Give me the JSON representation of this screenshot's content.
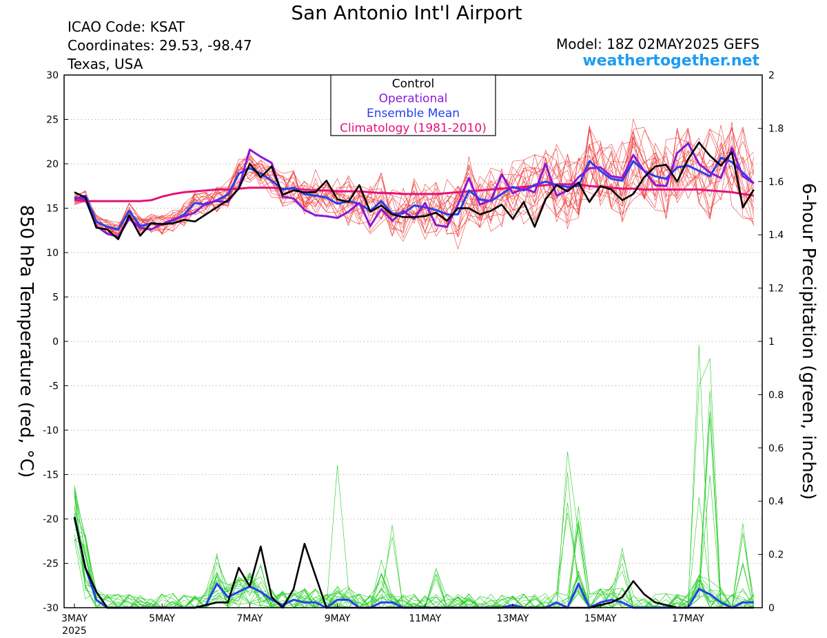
{
  "header": {
    "title": "San Antonio Int'l Airport",
    "icao": "ICAO Code: KSAT",
    "coordinates": "Coordinates: 29.53, -98.47",
    "state": "Texas, USA",
    "model": "Model: 18Z 02MAY2025 GEFS",
    "site": "weathertogether.net"
  },
  "colors": {
    "member_temp": "#ee3c3c",
    "member_precip": "#22cc22",
    "control": "#000000",
    "operational": "#8c18d4",
    "ensemble_mean": "#2440f0",
    "climatology": "#e81078",
    "site": "#1e9cf0"
  },
  "chart_data": {
    "type": "line",
    "ylabel": "850 hPa Temperature (red, °C)",
    "y2label": "6-hour Precipitation (green, inches)",
    "ylim": [
      -30,
      30
    ],
    "y2lim": [
      0,
      2
    ],
    "yticks": [
      30,
      25,
      20,
      15,
      10,
      5,
      0,
      -5,
      -10,
      -15,
      -20,
      -25,
      -30
    ],
    "y2ticks": [
      2,
      1.8,
      1.6,
      1.4,
      1.2,
      1,
      0.8,
      0.6,
      0.4,
      0.2,
      0
    ],
    "x_start": "3MAY",
    "x_step_hours": 6,
    "xlim": [
      0,
      62.5
    ],
    "xticks": [
      {
        "x": 0,
        "label": "3MAY",
        "sub": "2025"
      },
      {
        "x": 8,
        "label": "5MAY"
      },
      {
        "x": 16,
        "label": "7MAY"
      },
      {
        "x": 24,
        "label": "9MAY"
      },
      {
        "x": 32,
        "label": "11MAY"
      },
      {
        "x": 40,
        "label": "13MAY"
      },
      {
        "x": 48,
        "label": "15MAY"
      },
      {
        "x": 56,
        "label": "17MAY"
      }
    ],
    "grid": true,
    "legend": {
      "position": "top-center",
      "entries": [
        {
          "name": "Control",
          "color": "#000000"
        },
        {
          "name": "Operational",
          "color": "#8c18d4"
        },
        {
          "name": "Ensemble Mean",
          "color": "#2440f0"
        },
        {
          "name": "Climatology (1981-2010)",
          "color": "#e81078"
        }
      ]
    },
    "temperature": {
      "control": [
        16.8,
        16.2,
        12.8,
        12.6,
        11.5,
        14.2,
        11.9,
        13.3,
        13.2,
        13.3,
        13.7,
        13.5,
        14.3,
        15.1,
        15.9,
        17.2,
        20.0,
        18.5,
        19.7,
        16.5,
        17.0,
        16.8,
        16.8,
        18.1,
        16.0,
        15.7,
        17.6,
        14.6,
        15.3,
        14.3,
        14.0,
        14.0,
        14.1,
        14.5,
        13.6,
        15.0,
        15.0,
        14.3,
        14.7,
        15.4,
        13.8,
        15.7,
        12.9,
        16.0,
        17.6,
        16.9,
        17.9,
        15.7,
        17.5,
        17.1,
        15.9,
        16.6,
        18.5,
        19.7,
        19.9,
        18.0,
        20.5,
        22.4,
        20.9,
        19.8,
        21.3,
        15.1,
        17.1
      ],
      "operational": [
        16.2,
        16.0,
        13.0,
        12.1,
        11.8,
        13.8,
        12.8,
        12.6,
        13.2,
        13.7,
        14.1,
        14.5,
        15.6,
        15.8,
        15.7,
        17.3,
        21.6,
        20.8,
        20.1,
        16.3,
        16.1,
        14.8,
        14.2,
        14.1,
        13.9,
        14.6,
        15.6,
        13.0,
        14.9,
        13.6,
        14.7,
        13.8,
        15.6,
        13.1,
        12.9,
        15.4,
        18.4,
        15.4,
        15.9,
        18.8,
        16.7,
        17.2,
        16.8,
        20.0,
        16.4,
        17.0,
        18.5,
        19.5,
        19.6,
        18.6,
        18.4,
        21.0,
        19.2,
        17.6,
        17.5,
        21.2,
        22.3,
        20.0,
        19.0,
        18.4,
        21.8,
        18.6,
        17.8
      ],
      "ensemble_mean": [
        16.0,
        16.4,
        13.5,
        12.9,
        12.6,
        14.7,
        13.0,
        13.3,
        13.2,
        13.6,
        14.3,
        15.6,
        15.4,
        15.9,
        16.5,
        18.9,
        19.5,
        18.9,
        18.1,
        17.1,
        17.3,
        16.6,
        16.4,
        16.2,
        15.5,
        15.8,
        15.5,
        14.7,
        15.8,
        14.4,
        14.4,
        15.3,
        15.1,
        14.8,
        14.3,
        14.3,
        17.0,
        16.0,
        15.8,
        16.6,
        17.4,
        17.0,
        17.6,
        18.0,
        17.6,
        17.4,
        17.5,
        20.3,
        19.2,
        18.3,
        18.1,
        20.3,
        19.2,
        18.6,
        18.3,
        19.6,
        19.8,
        19.2,
        18.6,
        20.7,
        20.2,
        19.0,
        17.8
      ],
      "climatology": [
        15.9,
        15.8,
        15.8,
        15.8,
        15.8,
        15.8,
        15.8,
        15.9,
        16.3,
        16.6,
        16.8,
        16.9,
        17.0,
        17.1,
        17.1,
        17.2,
        17.3,
        17.3,
        17.3,
        17.2,
        17.2,
        17.1,
        17.0,
        17.0,
        16.9,
        16.9,
        16.9,
        16.8,
        16.7,
        16.7,
        16.6,
        16.6,
        16.6,
        16.6,
        16.7,
        16.8,
        16.9,
        17.0,
        17.1,
        17.2,
        17.3,
        17.4,
        17.5,
        17.6,
        17.7,
        17.7,
        17.7,
        17.5,
        17.4,
        17.3,
        17.2,
        17.2,
        17.1,
        17.1,
        17.1,
        17.1,
        17.1,
        17.1,
        17.0,
        16.9,
        16.8,
        16.6,
        16.4
      ],
      "members_note_count": 20
    },
    "precipitation": {
      "control": [
        0.34,
        0.15,
        0.06,
        0.0,
        0.0,
        0.0,
        0.0,
        0.0,
        0.0,
        0.0,
        0.0,
        0.0,
        0.01,
        0.02,
        0.02,
        0.15,
        0.08,
        0.23,
        0.04,
        0.0,
        0.07,
        0.24,
        0.12,
        0.0,
        0.0,
        0.0,
        0.0,
        0.0,
        0.0,
        0.0,
        0.0,
        0.0,
        0.0,
        0.0,
        0.0,
        0.0,
        0.0,
        0.0,
        0.0,
        0.0,
        0.0,
        0.0,
        0.0,
        0.0,
        0.0,
        0.0,
        0.0,
        0.0,
        0.01,
        0.02,
        0.04,
        0.1,
        0.05,
        0.02,
        0.01,
        0.0,
        0.0,
        0.0,
        0.0,
        0.0,
        0.0,
        0.0,
        0.0
      ],
      "ensemble_mean": [
        0.34,
        0.15,
        0.03,
        0.0,
        0.0,
        0.0,
        0.0,
        0.0,
        0.0,
        0.0,
        0.0,
        0.0,
        0.01,
        0.09,
        0.04,
        0.06,
        0.08,
        0.06,
        0.03,
        0.01,
        0.03,
        0.02,
        0.02,
        0.0,
        0.03,
        0.03,
        0.0,
        0.0,
        0.02,
        0.02,
        0.0,
        0.0,
        0.0,
        0.0,
        0.0,
        0.0,
        0.0,
        0.0,
        0.0,
        0.0,
        0.01,
        0.0,
        0.0,
        0.0,
        0.02,
        0.0,
        0.09,
        0.0,
        0.02,
        0.03,
        0.02,
        0.0,
        0.0,
        0.0,
        0.0,
        0.0,
        0.0,
        0.07,
        0.05,
        0.02,
        0.0,
        0.02,
        0.02
      ]
    }
  }
}
